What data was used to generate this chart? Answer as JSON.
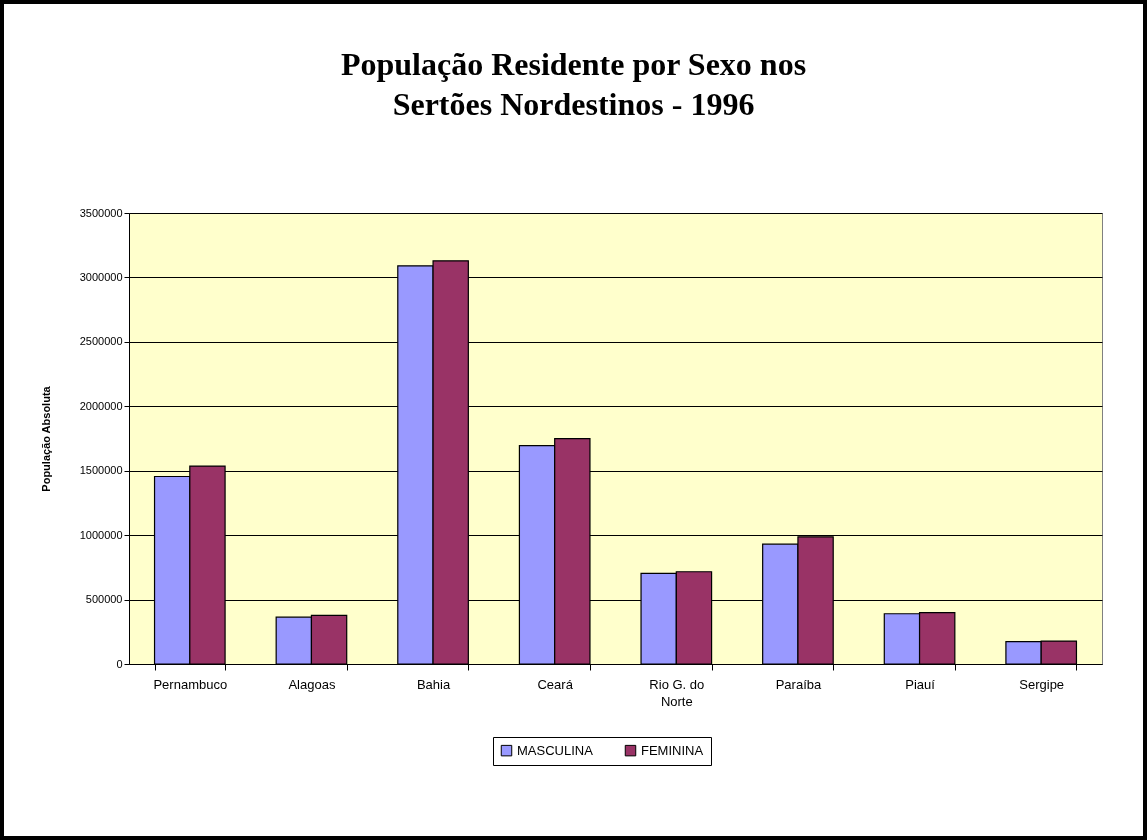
{
  "chart_data": {
    "type": "bar",
    "title": "População Residente por Sexo nos\nSertões Nordestinos - 1996",
    "ylabel": "População Absoluta",
    "categories": [
      "Pernambuco",
      "Alagoas",
      "Bahia",
      "Ceará",
      "Rio G. do Norte",
      "Paraíba",
      "Piauí",
      "Sergipe"
    ],
    "series": [
      {
        "name": "MASCULINA",
        "color": "#9999ff",
        "values": [
          1455000,
          363000,
          3090000,
          1695000,
          703000,
          930000,
          390000,
          173000
        ]
      },
      {
        "name": "FEMININA",
        "color": "#993366",
        "values": [
          1536000,
          378000,
          3129000,
          1749000,
          716000,
          987000,
          398000,
          178000
        ]
      }
    ],
    "ylim": [
      0,
      3500000
    ],
    "yticks": [
      0,
      500000,
      1000000,
      1500000,
      2000000,
      2500000,
      3000000,
      3500000
    ],
    "grid": "y",
    "legend": "bottom"
  }
}
